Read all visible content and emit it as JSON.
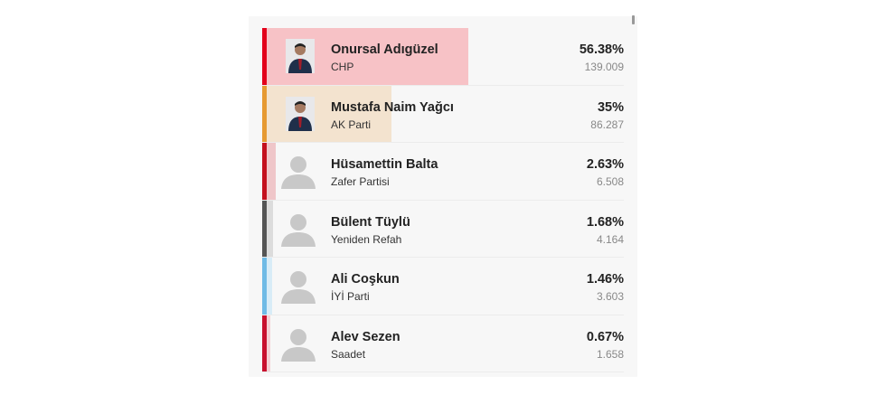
{
  "candidates": [
    {
      "name": "Onursal Adıgüzel",
      "party": "CHP",
      "percent_label": "56.38%",
      "percent": 56.38,
      "votes": "139.009",
      "color": "#e3001b",
      "fill": "#f7c2c6",
      "photo": "photo"
    },
    {
      "name": "Mustafa Naim Yağcı",
      "party": "AK Parti",
      "percent_label": "35%",
      "percent": 35,
      "votes": "86.287",
      "color": "#e69a32",
      "fill": "#f3e3cf",
      "photo": "photo"
    },
    {
      "name": "Hüsamettin Balta",
      "party": "Zafer Partisi",
      "percent_label": "2.63%",
      "percent": 2.63,
      "votes": "6.508",
      "color": "#c4101e",
      "fill": "#efc6c9",
      "photo": "avatar-placeholder"
    },
    {
      "name": "Bülent Tüylü",
      "party": "Yeniden Refah",
      "percent_label": "1.68%",
      "percent": 1.68,
      "votes": "4.164",
      "color": "#555555",
      "fill": "#dcdcdc",
      "photo": "avatar-placeholder"
    },
    {
      "name": "Ali Coşkun",
      "party": "İYİ Parti",
      "percent_label": "1.46%",
      "percent": 1.46,
      "votes": "3.603",
      "color": "#6fbbe6",
      "fill": "#d8ecf7",
      "photo": "avatar-placeholder"
    },
    {
      "name": "Alev Sezen",
      "party": "Saadet",
      "percent_label": "0.67%",
      "percent": 0.67,
      "votes": "1.658",
      "color": "#c8102e",
      "fill": "#f3d0d4",
      "photo": "avatar-placeholder"
    }
  ]
}
